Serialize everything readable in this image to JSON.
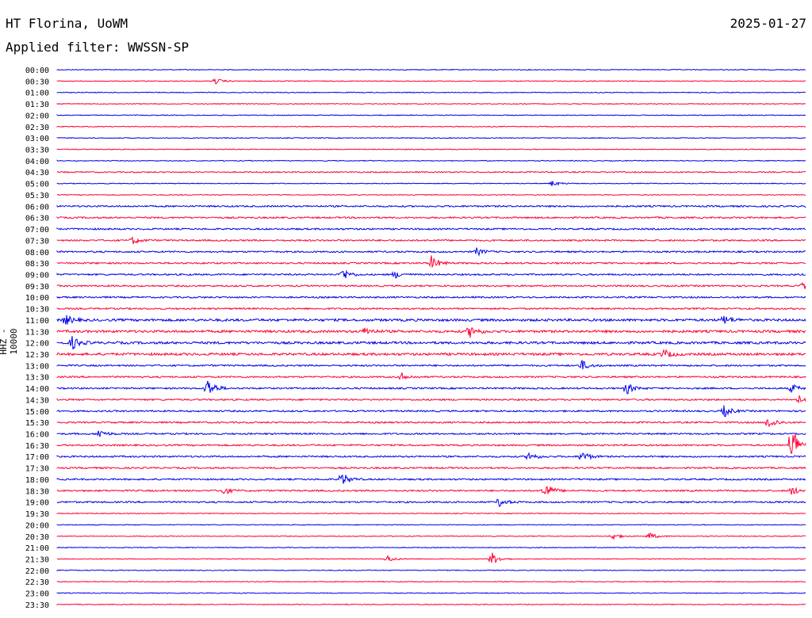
{
  "header": {
    "station": "HT Florina, UoWM",
    "date": "2025-01-27",
    "filter_label": "Applied filter: WWSSN-SP"
  },
  "colors": {
    "even_trace": "#0000ee",
    "odd_trace": "#ff0033"
  },
  "chart_data": {
    "type": "line",
    "title": "HT Florina, UoWM",
    "ylabel": "HHZ - 10000",
    "rows": [
      "00:00",
      "00:30",
      "01:00",
      "01:30",
      "02:00",
      "02:30",
      "03:00",
      "03:30",
      "04:00",
      "04:30",
      "05:00",
      "05:30",
      "06:00",
      "06:30",
      "07:00",
      "07:30",
      "08:00",
      "08:30",
      "09:00",
      "09:30",
      "10:00",
      "10:30",
      "11:00",
      "11:30",
      "12:00",
      "12:30",
      "13:00",
      "13:30",
      "14:00",
      "14:30",
      "15:00",
      "15:30",
      "16:00",
      "16:30",
      "17:00",
      "17:30",
      "18:00",
      "18:30",
      "19:00",
      "19:30",
      "20:00",
      "20:30",
      "21:00",
      "21:30",
      "22:00",
      "22:30",
      "23:00",
      "23:30"
    ],
    "noise_level": [
      1,
      1,
      1,
      1,
      1,
      1,
      1,
      1,
      1,
      1.5,
      1,
      1,
      2,
      2,
      2,
      2,
      2,
      2,
      2,
      2,
      2,
      2,
      3,
      3,
      3,
      3,
      2,
      2,
      2,
      2,
      2,
      2,
      2,
      2,
      2,
      2,
      2,
      2,
      2,
      1,
      1,
      1,
      1,
      1,
      1,
      1,
      1,
      1
    ],
    "events": [
      {
        "row": "00:30",
        "x": 0.21,
        "amp": 4
      },
      {
        "row": "05:00",
        "x": 0.66,
        "amp": 4
      },
      {
        "row": "06:00",
        "x": 0.999,
        "amp": 4
      },
      {
        "row": "07:30",
        "x": 0.1,
        "amp": 5
      },
      {
        "row": "08:00",
        "x": 0.56,
        "amp": 5
      },
      {
        "row": "08:30",
        "x": 0.5,
        "amp": 9
      },
      {
        "row": "09:00",
        "x": 0.38,
        "amp": 9
      },
      {
        "row": "09:00",
        "x": 0.45,
        "amp": 5
      },
      {
        "row": "09:30",
        "x": 0.995,
        "amp": 5
      },
      {
        "row": "11:00",
        "x": 0.01,
        "amp": 7
      },
      {
        "row": "11:00",
        "x": 0.89,
        "amp": 6
      },
      {
        "row": "11:30",
        "x": 0.55,
        "amp": 9
      },
      {
        "row": "11:30",
        "x": 0.41,
        "amp": 6
      },
      {
        "row": "12:00",
        "x": 0.02,
        "amp": 8
      },
      {
        "row": "12:30",
        "x": 0.81,
        "amp": 6
      },
      {
        "row": "13:00",
        "x": 0.7,
        "amp": 7
      },
      {
        "row": "13:30",
        "x": 0.46,
        "amp": 5
      },
      {
        "row": "14:00",
        "x": 0.2,
        "amp": 14
      },
      {
        "row": "14:00",
        "x": 0.76,
        "amp": 8
      },
      {
        "row": "14:00",
        "x": 0.98,
        "amp": 6
      },
      {
        "row": "14:30",
        "x": 0.99,
        "amp": 5
      },
      {
        "row": "15:00",
        "x": 0.89,
        "amp": 8
      },
      {
        "row": "15:30",
        "x": 0.95,
        "amp": 9
      },
      {
        "row": "16:00",
        "x": 0.055,
        "amp": 6
      },
      {
        "row": "16:30",
        "x": 0.98,
        "amp": 30
      },
      {
        "row": "17:00",
        "x": 0.7,
        "amp": 8
      },
      {
        "row": "17:00",
        "x": 0.63,
        "amp": 6
      },
      {
        "row": "18:00",
        "x": 0.38,
        "amp": 9
      },
      {
        "row": "18:30",
        "x": 0.65,
        "amp": 13
      },
      {
        "row": "18:30",
        "x": 0.22,
        "amp": 6
      },
      {
        "row": "18:30",
        "x": 0.98,
        "amp": 6
      },
      {
        "row": "19:00",
        "x": 0.59,
        "amp": 6
      },
      {
        "row": "20:30",
        "x": 0.74,
        "amp": 5
      },
      {
        "row": "20:30",
        "x": 0.79,
        "amp": 5
      },
      {
        "row": "21:30",
        "x": 0.58,
        "amp": 9
      },
      {
        "row": "21:30",
        "x": 0.44,
        "amp": 5
      }
    ]
  }
}
